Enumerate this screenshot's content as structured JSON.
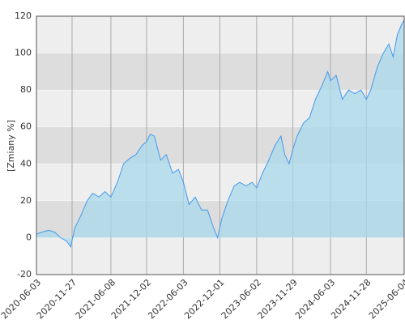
{
  "chart_data": {
    "type": "area",
    "y_label": "[Zmiany %]",
    "x": [
      "2020-06-03",
      "2020-07-01",
      "2020-08-01",
      "2020-09-01",
      "2020-10-01",
      "2020-11-01",
      "2020-11-20",
      "2020-12-10",
      "2021-01-10",
      "2021-02-10",
      "2021-03-10",
      "2021-04-10",
      "2021-05-10",
      "2021-06-08",
      "2021-07-10",
      "2021-08-10",
      "2021-09-10",
      "2021-10-10",
      "2021-11-10",
      "2021-12-02",
      "2021-12-20",
      "2022-01-10",
      "2022-02-10",
      "2022-03-10",
      "2022-04-10",
      "2022-05-10",
      "2022-06-03",
      "2022-07-01",
      "2022-08-01",
      "2022-09-01",
      "2022-10-01",
      "2022-11-01",
      "2022-11-20",
      "2022-12-10",
      "2023-01-10",
      "2023-02-10",
      "2023-03-10",
      "2023-04-10",
      "2023-05-10",
      "2023-06-02",
      "2023-07-01",
      "2023-08-01",
      "2023-09-01",
      "2023-10-01",
      "2023-10-20",
      "2023-11-10",
      "2023-11-29",
      "2023-12-20",
      "2024-01-20",
      "2024-02-20",
      "2024-03-20",
      "2024-04-20",
      "2024-05-20",
      "2024-06-03",
      "2024-07-01",
      "2024-08-01",
      "2024-09-01",
      "2024-10-01",
      "2024-11-01",
      "2024-11-28",
      "2024-12-20",
      "2025-01-20",
      "2025-02-20",
      "2025-03-20",
      "2025-04-10",
      "2025-05-01",
      "2025-05-20",
      "2025-06-04"
    ],
    "values": [
      2,
      3,
      4,
      3,
      0,
      -2,
      -5,
      5,
      12,
      20,
      24,
      22,
      25,
      22,
      30,
      40,
      43,
      45,
      50,
      52,
      56,
      55,
      42,
      45,
      35,
      37,
      30,
      18,
      22,
      15,
      15,
      5,
      0,
      10,
      20,
      28,
      30,
      28,
      30,
      27,
      35,
      42,
      50,
      55,
      45,
      40,
      48,
      55,
      62,
      65,
      75,
      82,
      90,
      85,
      88,
      75,
      80,
      78,
      80,
      75,
      80,
      92,
      100,
      105,
      98,
      110,
      115,
      118
    ],
    "color": "#4499ee",
    "fill": "#a8d8ea",
    "ylim": [
      -20,
      120
    ],
    "yticks": [
      -20,
      0,
      20,
      40,
      60,
      80,
      100,
      120
    ],
    "xlim": [
      "2020-06-03",
      "2025-06-04"
    ],
    "xticks": [
      "2020-06-03",
      "2020-11-27",
      "2021-06-08",
      "2021-12-02",
      "2022-06-03",
      "2022-12-01",
      "2023-06-02",
      "2023-11-29",
      "2024-06-03",
      "2024-11-28",
      "2025-06-04"
    ],
    "grid": true
  }
}
